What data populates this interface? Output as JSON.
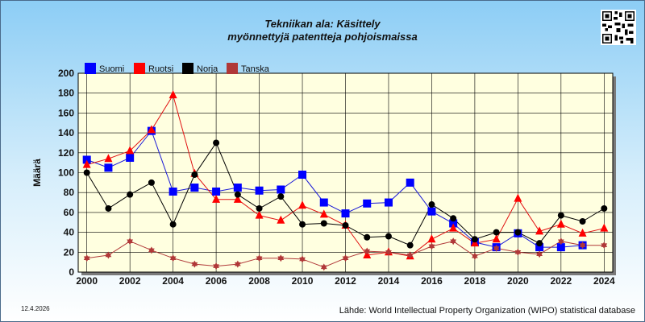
{
  "title_line1": "Tekniikan ala: Käsittely",
  "title_line2": "myönnettyjä patentteja pohjoismaissa",
  "date": "12.4.2026",
  "source": "Lähde: World Intellectual Property Organization (WIPO) statistical database",
  "qr_icon": "qr-code-icon",
  "chart_data": {
    "type": "line",
    "title": "Tekniikan ala: Käsittely myönnettyjä patentteja pohjoismaissa",
    "xlabel": "",
    "ylabel": "Määrä",
    "x": [
      2000,
      2001,
      2002,
      2003,
      2004,
      2005,
      2006,
      2007,
      2008,
      2009,
      2010,
      2011,
      2012,
      2013,
      2014,
      2015,
      2016,
      2017,
      2018,
      2019,
      2020,
      2021,
      2022,
      2023,
      2024
    ],
    "xticks": [
      "2000",
      "2002",
      "2004",
      "2006",
      "2008",
      "2010",
      "2012",
      "2014",
      "2016",
      "2018",
      "2020",
      "2022",
      "2024"
    ],
    "xtick_values": [
      2000,
      2002,
      2004,
      2006,
      2008,
      2010,
      2012,
      2014,
      2016,
      2018,
      2020,
      2022,
      2024
    ],
    "yticks": [
      "0",
      "20",
      "40",
      "60",
      "80",
      "100",
      "120",
      "140",
      "160",
      "180",
      "200"
    ],
    "ylim": [
      0,
      200
    ],
    "xlim": [
      1999.6,
      2024.4
    ],
    "grid": true,
    "legend_placement": "top-left",
    "series": [
      {
        "name": "Suomi",
        "color": "#0000ff",
        "marker": "square",
        "line_color": "#1a1ad6",
        "values": [
          113,
          105,
          115,
          142,
          81,
          85,
          81,
          85,
          82,
          83,
          98,
          70,
          59,
          69,
          70,
          90,
          61,
          49,
          30,
          25,
          39,
          25,
          25,
          27,
          null
        ]
      },
      {
        "name": "Ruotsi",
        "color": "#ff0000",
        "marker": "triangle",
        "line_color": "#e01010",
        "values": [
          108,
          114,
          122,
          143,
          178,
          99,
          73,
          73,
          57,
          52,
          67,
          58,
          47,
          17,
          20,
          16,
          33,
          44,
          29,
          33,
          74,
          41,
          48,
          39,
          44
        ]
      },
      {
        "name": "Norja",
        "color": "#000000",
        "marker": "circle",
        "line_color": "#000000",
        "values": [
          100,
          64,
          78,
          90,
          48,
          98,
          130,
          78,
          64,
          76,
          48,
          49,
          47,
          35,
          36,
          27,
          68,
          54,
          33,
          40,
          40,
          29,
          57,
          51,
          64
        ]
      },
      {
        "name": "Tanska",
        "color": "#b03838",
        "marker": "star",
        "line_color": "#b03838",
        "values": [
          14,
          17,
          31,
          22,
          14,
          8,
          6,
          8,
          14,
          14,
          13,
          5,
          14,
          21,
          20,
          17,
          26,
          31,
          16,
          24,
          20,
          18,
          31,
          27,
          27
        ]
      }
    ]
  }
}
